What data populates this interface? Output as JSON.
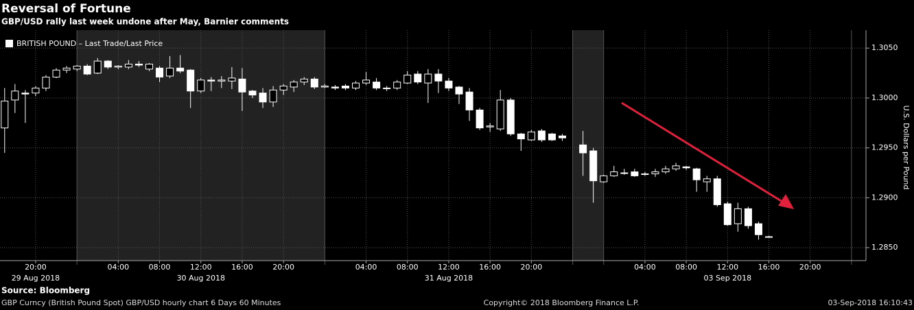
{
  "chart_data": {
    "type": "candlestick",
    "title": "Reversal of Fortune",
    "subtitle": "GBP/USD rally last week undone after May, Barnier comments",
    "legend": "BRITISH POUND – Last Trade/Last Price",
    "ylabel": "U.S. Dollars per Pound",
    "source": "Source: Bloomberg",
    "footer_left": "GBP Curncy (British Pound Spot) GBP/USD hourly chart 6 Days 60 Minutes",
    "footer_center": "Copyright© 2018 Bloomberg Finance L.P.",
    "footer_right": "03-Sep-2018 16:10:43",
    "color": "#ffffff",
    "grid": true,
    "xlim": [
      -3.45,
      80.4
    ],
    "ylim": [
      1.2837,
      1.3068
    ],
    "yticks": [
      {
        "value": 1.285,
        "label": "1.2850"
      },
      {
        "value": 1.29,
        "label": "1.2900"
      },
      {
        "value": 1.295,
        "label": "1.2950"
      },
      {
        "value": 1.3,
        "label": "1.3000"
      },
      {
        "value": 1.305,
        "label": "1.3050"
      }
    ],
    "xticks": [
      {
        "value": 0,
        "label": "20:00"
      },
      {
        "value": 8,
        "label": "04:00"
      },
      {
        "value": 12,
        "label": "08:00"
      },
      {
        "value": 16,
        "label": "12:00"
      },
      {
        "value": 20,
        "label": "16:00"
      },
      {
        "value": 24,
        "label": "20:00"
      },
      {
        "value": 32,
        "label": "04:00"
      },
      {
        "value": 36,
        "label": "08:00"
      },
      {
        "value": 40,
        "label": "12:00"
      },
      {
        "value": 44,
        "label": "16:00"
      },
      {
        "value": 48,
        "label": "20:00"
      },
      {
        "value": 59,
        "label": "04:00"
      },
      {
        "value": 63,
        "label": "08:00"
      },
      {
        "value": 67,
        "label": "12:00"
      },
      {
        "value": 71,
        "label": "16:00"
      },
      {
        "value": 75,
        "label": "20:00"
      }
    ],
    "date_labels": [
      {
        "value": 0,
        "label": "29 Aug 2018"
      },
      {
        "value": 16,
        "label": "30 Aug 2018"
      },
      {
        "value": 40,
        "label": "31 Aug 2018"
      },
      {
        "value": 67,
        "label": "03 Sep 2018"
      }
    ],
    "day_separators": [
      4,
      28,
      52,
      55,
      79
    ],
    "shaded_ranges": [
      [
        4,
        28
      ],
      [
        52,
        55
      ]
    ],
    "candles": {
      "x": [
        -3,
        -2,
        -1,
        0,
        1,
        2,
        3,
        4,
        5,
        6,
        7,
        8,
        9,
        10,
        11,
        12,
        13,
        14,
        15,
        16,
        17,
        18,
        19,
        20,
        21,
        22,
        23,
        24,
        25,
        26,
        27,
        28,
        29,
        30,
        31,
        32,
        33,
        34,
        35,
        36,
        37,
        38,
        39,
        40,
        41,
        42,
        43,
        44,
        45,
        46,
        47,
        48,
        49,
        50,
        51,
        53,
        54,
        55,
        56,
        57,
        58,
        59,
        60,
        61,
        62,
        63,
        64,
        65,
        66,
        67,
        68,
        69,
        70,
        71
      ],
      "open": [
        1.297,
        1.2998,
        1.3005,
        1.3005,
        1.301,
        1.3021,
        1.3028,
        1.3029,
        1.3032,
        1.3025,
        1.3037,
        1.3031,
        1.3031,
        1.3034,
        1.3029,
        1.303,
        1.3022,
        1.303,
        1.3028,
        1.3007,
        1.3018,
        1.3017,
        1.3017,
        1.3019,
        1.3007,
        1.3005,
        1.2996,
        1.3008,
        1.3011,
        1.3016,
        1.3019,
        1.3011,
        1.3011,
        1.3012,
        1.301,
        1.3015,
        1.3016,
        1.301,
        1.301,
        1.3015,
        1.3024,
        1.3015,
        1.3024,
        1.3017,
        1.3011,
        1.3006,
        1.2988,
        1.2971,
        1.2969,
        1.2998,
        1.2964,
        1.2958,
        1.2967,
        1.2964,
        1.2962,
        1.2953,
        1.2947,
        1.2916,
        1.2922,
        1.2925,
        1.2926,
        1.2924,
        1.2924,
        1.2926,
        1.2929,
        1.2931,
        1.2929,
        1.2916,
        1.2919,
        1.2894,
        1.2874,
        1.2889,
        1.2874,
        1.2861
      ],
      "high": [
        1.301,
        1.3014,
        1.3008,
        1.3012,
        1.3023,
        1.303,
        1.3032,
        1.3033,
        1.3034,
        1.304,
        1.3038,
        1.3033,
        1.3038,
        1.3037,
        1.3035,
        1.3032,
        1.3042,
        1.3043,
        1.3029,
        1.302,
        1.3021,
        1.3022,
        1.3031,
        1.303,
        1.3008,
        1.301,
        1.3012,
        1.3014,
        1.3018,
        1.3021,
        1.3021,
        1.3014,
        1.3013,
        1.3014,
        1.3017,
        1.3026,
        1.302,
        1.3012,
        1.3018,
        1.3027,
        1.3027,
        1.3029,
        1.3029,
        1.302,
        1.3012,
        1.301,
        1.299,
        1.2975,
        1.3008,
        1.3,
        1.2965,
        1.2968,
        1.2969,
        1.2965,
        1.2964,
        1.2967,
        1.295,
        1.2923,
        1.2932,
        1.2929,
        1.2929,
        1.2926,
        1.2929,
        1.2932,
        1.2935,
        1.2932,
        1.293,
        1.2922,
        1.2922,
        1.2896,
        1.2895,
        1.2891,
        1.2876,
        1.2862
      ],
      "low": [
        1.2945,
        1.2985,
        1.2975,
        1.3002,
        1.3007,
        1.302,
        1.3025,
        1.3027,
        1.3023,
        1.3024,
        1.3029,
        1.3029,
        1.3029,
        1.3031,
        1.3027,
        1.3016,
        1.302,
        1.3025,
        1.299,
        1.3005,
        1.3007,
        1.301,
        1.3009,
        1.2987,
        1.3,
        1.299,
        1.2991,
        1.3003,
        1.3006,
        1.3013,
        1.3009,
        1.301,
        1.3008,
        1.3008,
        1.3008,
        1.3013,
        1.3008,
        1.3007,
        1.3008,
        1.3014,
        1.3014,
        1.2995,
        1.3005,
        1.3007,
        1.2994,
        1.2977,
        1.2968,
        1.2966,
        1.2967,
        1.2962,
        1.2947,
        1.2957,
        1.2956,
        1.2957,
        1.2957,
        1.2922,
        1.2895,
        1.2915,
        1.2921,
        1.2923,
        1.2921,
        1.2922,
        1.2921,
        1.2924,
        1.2927,
        1.2928,
        1.2906,
        1.2906,
        1.2891,
        1.2872,
        1.2866,
        1.2869,
        1.2858,
        1.286
      ],
      "close": [
        1.2997,
        1.3007,
        1.3004,
        1.301,
        1.3021,
        1.3028,
        1.303,
        1.3032,
        1.3024,
        1.3037,
        1.3031,
        1.3032,
        1.3034,
        1.3033,
        1.3034,
        1.3021,
        1.303,
        1.3027,
        1.3007,
        1.3018,
        1.3017,
        1.3018,
        1.302,
        1.3006,
        1.3003,
        1.2996,
        1.3008,
        1.3012,
        1.3016,
        1.3019,
        1.3011,
        1.3012,
        1.301,
        1.301,
        1.3015,
        1.3018,
        1.301,
        1.301,
        1.3016,
        1.3023,
        1.3016,
        1.3024,
        1.3017,
        1.301,
        1.3004,
        1.2988,
        1.297,
        1.2972,
        1.2998,
        1.2964,
        1.2959,
        1.2966,
        1.2958,
        1.2958,
        1.296,
        1.2945,
        1.2917,
        1.2922,
        1.2926,
        1.2925,
        1.2922,
        1.2924,
        1.2926,
        1.2929,
        1.2932,
        1.293,
        1.2918,
        1.2919,
        1.2893,
        1.2873,
        1.2889,
        1.2872,
        1.2863,
        1.2861
      ]
    }
  }
}
